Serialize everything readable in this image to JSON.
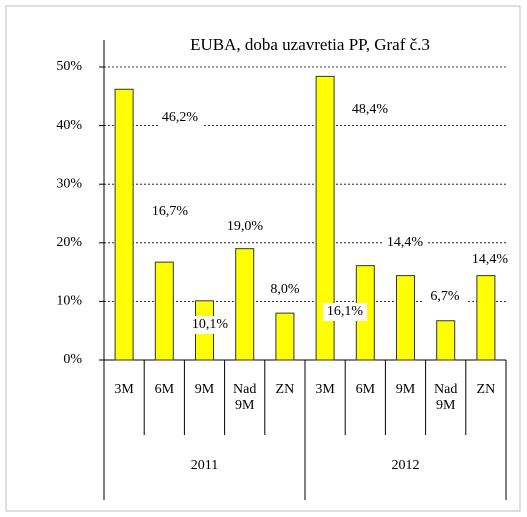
{
  "chart_data": {
    "type": "bar",
    "title": "EUBA, doba  uzavretia  PP, Graf č.3",
    "categories": [
      "3M",
      "6M",
      "9M",
      "Nad 9M",
      "ZN",
      "3M",
      "6M",
      "9M",
      "Nad 9M",
      "ZN"
    ],
    "groups": [
      "2011",
      "2012"
    ],
    "values": [
      46.2,
      16.7,
      10.1,
      19.0,
      8.0,
      48.4,
      16.1,
      14.4,
      6.7,
      14.4
    ],
    "value_labels": [
      "46,2%",
      "16,7%",
      "10,1%",
      "19,0%",
      "8,0%",
      "48,4%",
      "16,1%",
      "14,4%",
      "6,7%",
      "14,4%"
    ],
    "color": "#ffff00",
    "ylim": [
      0,
      50
    ],
    "yticks": [
      {
        "value": 0,
        "label": "0%"
      },
      {
        "value": 10,
        "label": "10%"
      },
      {
        "value": 20,
        "label": "20%"
      },
      {
        "value": 30,
        "label": "30%"
      },
      {
        "value": 40,
        "label": "40%"
      },
      {
        "value": 50,
        "label": "50%"
      }
    ],
    "grid": true
  }
}
